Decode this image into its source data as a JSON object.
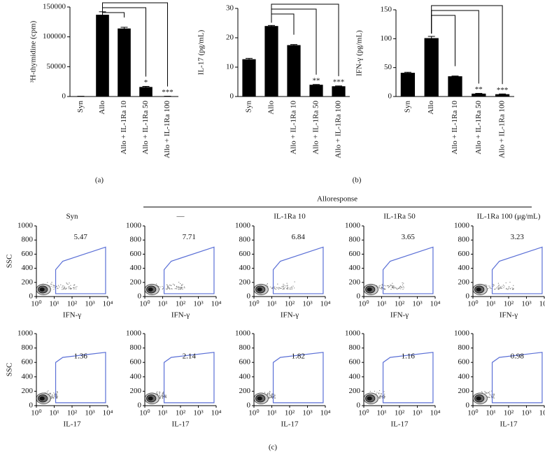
{
  "group_title": "Alloresponse",
  "panel_labels": [
    "(a)",
    "(b)",
    "(c)"
  ],
  "chart_data": [
    {
      "type": "bar",
      "ylabel": "³H-thymidine (cpm)",
      "categories": [
        "Syn",
        "Allo",
        "Allo + IL-1Ra 10",
        "Allo + IL-1Ra 50",
        "Allo + IL-1Ra 100"
      ],
      "values": [
        500,
        137000,
        114000,
        16000,
        500
      ],
      "errors": [
        0,
        5000,
        2000,
        1000,
        0
      ],
      "stars": [
        null,
        null,
        null,
        "*",
        "***"
      ],
      "color": "#000000",
      "ylim": [
        0,
        150000
      ],
      "yticks": [
        0,
        50000,
        100000,
        150000
      ]
    },
    {
      "type": "bar",
      "ylabel": "IL-17 (pg/mL)",
      "categories": [
        "Syn",
        "Allo",
        "Allo + IL-1Ra 10",
        "Allo + IL-1Ra 50",
        "Allo + IL-1Ra 100"
      ],
      "values": [
        12.7,
        24,
        17.5,
        4,
        3.5
      ],
      "errors": [
        0.3,
        0.2,
        0.2,
        0.1,
        0.1
      ],
      "stars": [
        null,
        null,
        null,
        "**",
        "***"
      ],
      "color": "#000000",
      "ylim": [
        0,
        30
      ],
      "yticks": [
        0,
        10,
        20,
        30
      ]
    },
    {
      "type": "bar",
      "ylabel": "IFN-γ (pg/mL)",
      "categories": [
        "Syn",
        "Allo",
        "Allo + IL-1Ra 10",
        "Allo + IL-1Ra 50",
        "Allo + IL-1Ra 100"
      ],
      "values": [
        41,
        101,
        35,
        5,
        4
      ],
      "errors": [
        1,
        3,
        0.5,
        0.5,
        0.5
      ],
      "stars": [
        null,
        null,
        null,
        "**",
        "***"
      ],
      "color": "#000000",
      "ylim": [
        0,
        150
      ],
      "yticks": [
        0,
        50,
        100,
        150
      ]
    },
    {
      "type": "flow",
      "title": "Syn",
      "ylabel": "SSC",
      "xlabel": "IFN-γ",
      "gate_value": 5.47,
      "color": "#5a6fd6",
      "xscale": "log",
      "xlim": [
        1,
        10000
      ],
      "ylim": [
        0,
        1000
      ],
      "xticks": [
        {
          "value": 1,
          "label": "10⁰"
        },
        {
          "value": 10,
          "label": "10¹"
        },
        {
          "value": 100,
          "label": "10²"
        },
        {
          "value": 1000,
          "label": "10³"
        },
        {
          "value": 10000,
          "label": "10⁴"
        }
      ],
      "yticks": [
        0,
        200,
        400,
        600,
        800,
        1000
      ]
    },
    {
      "type": "flow",
      "title": "—",
      "xlabel": "IFN-γ",
      "gate_value": 7.71,
      "color": "#5a6fd6",
      "xscale": "log",
      "xlim": [
        1,
        10000
      ],
      "ylim": [
        0,
        1000
      ],
      "xticks": [
        {
          "value": 1,
          "label": "10⁰"
        },
        {
          "value": 10,
          "label": "10¹"
        },
        {
          "value": 100,
          "label": "10²"
        },
        {
          "value": 1000,
          "label": "10³"
        },
        {
          "value": 10000,
          "label": "10⁴"
        }
      ],
      "yticks": [
        0,
        200,
        400,
        600,
        800,
        1000
      ]
    },
    {
      "type": "flow",
      "title": "IL-1Ra 10",
      "xlabel": "IFN-γ",
      "gate_value": 6.84,
      "color": "#5a6fd6",
      "xscale": "log",
      "xlim": [
        1,
        10000
      ],
      "ylim": [
        0,
        1000
      ],
      "xticks": [
        {
          "value": 1,
          "label": "10⁰"
        },
        {
          "value": 10,
          "label": "10¹"
        },
        {
          "value": 100,
          "label": "10²"
        },
        {
          "value": 1000,
          "label": "10³"
        },
        {
          "value": 10000,
          "label": "10⁴"
        }
      ],
      "yticks": [
        0,
        200,
        400,
        600,
        800,
        1000
      ]
    },
    {
      "type": "flow",
      "title": "IL-1Ra 50",
      "xlabel": "IFN-γ",
      "gate_value": 3.65,
      "color": "#5a6fd6",
      "xscale": "log",
      "xlim": [
        1,
        10000
      ],
      "ylim": [
        0,
        1000
      ],
      "xticks": [
        {
          "value": 1,
          "label": "10⁰"
        },
        {
          "value": 10,
          "label": "10¹"
        },
        {
          "value": 100,
          "label": "10²"
        },
        {
          "value": 1000,
          "label": "10³"
        },
        {
          "value": 10000,
          "label": "10⁴"
        }
      ],
      "yticks": [
        0,
        200,
        400,
        600,
        800,
        1000
      ]
    },
    {
      "type": "flow",
      "title": "IL-1Ra 100 (μg/mL)",
      "xlabel": "IFN-γ",
      "gate_value": 3.23,
      "color": "#5a6fd6",
      "xscale": "log",
      "xlim": [
        1,
        10000
      ],
      "ylim": [
        0,
        1000
      ],
      "xticks": [
        {
          "value": 1,
          "label": "10⁰"
        },
        {
          "value": 10,
          "label": "10¹"
        },
        {
          "value": 100,
          "label": "10²"
        },
        {
          "value": 1000,
          "label": "10³"
        },
        {
          "value": 10000,
          "label": "10⁴"
        }
      ],
      "yticks": [
        0,
        200,
        400,
        600,
        800,
        1000
      ]
    },
    {
      "type": "flow",
      "ylabel": "SSC",
      "xlabel": "IL-17",
      "gate_value": 1.36,
      "color": "#5a6fd6",
      "xscale": "log",
      "xlim": [
        1,
        10000
      ],
      "ylim": [
        0,
        1000
      ],
      "xticks": [
        {
          "value": 1,
          "label": "10⁰"
        },
        {
          "value": 10,
          "label": "10¹"
        },
        {
          "value": 100,
          "label": "10²"
        },
        {
          "value": 1000,
          "label": "10³"
        },
        {
          "value": 10000,
          "label": "10⁴"
        }
      ],
      "yticks": [
        0,
        200,
        400,
        600,
        800,
        1000
      ]
    },
    {
      "type": "flow",
      "xlabel": "IL-17",
      "gate_value": 2.14,
      "color": "#5a6fd6",
      "xscale": "log",
      "xlim": [
        1,
        10000
      ],
      "ylim": [
        0,
        1000
      ],
      "xticks": [
        {
          "value": 1,
          "label": "10⁰"
        },
        {
          "value": 10,
          "label": "10¹"
        },
        {
          "value": 100,
          "label": "10²"
        },
        {
          "value": 1000,
          "label": "10³"
        },
        {
          "value": 10000,
          "label": "10⁴"
        }
      ],
      "yticks": [
        0,
        200,
        400,
        600,
        800,
        1000
      ]
    },
    {
      "type": "flow",
      "xlabel": "IL-17",
      "gate_value": 1.82,
      "color": "#5a6fd6",
      "xscale": "log",
      "xlim": [
        1,
        10000
      ],
      "ylim": [
        0,
        1000
      ],
      "xticks": [
        {
          "value": 1,
          "label": "10⁰"
        },
        {
          "value": 10,
          "label": "10¹"
        },
        {
          "value": 100,
          "label": "10²"
        },
        {
          "value": 1000,
          "label": "10³"
        },
        {
          "value": 10000,
          "label": "10⁴"
        }
      ],
      "yticks": [
        0,
        200,
        400,
        600,
        800,
        1000
      ]
    },
    {
      "type": "flow",
      "xlabel": "IL-17",
      "gate_value": 1.16,
      "color": "#5a6fd6",
      "xscale": "log",
      "xlim": [
        1,
        10000
      ],
      "ylim": [
        0,
        1000
      ],
      "xticks": [
        {
          "value": 1,
          "label": "10⁰"
        },
        {
          "value": 10,
          "label": "10¹"
        },
        {
          "value": 100,
          "label": "10²"
        },
        {
          "value": 1000,
          "label": "10³"
        },
        {
          "value": 10000,
          "label": "10⁴"
        }
      ],
      "yticks": [
        0,
        200,
        400,
        600,
        800,
        1000
      ]
    },
    {
      "type": "flow",
      "xlabel": "IL-17",
      "gate_value": 0.98,
      "color": "#5a6fd6",
      "xscale": "log",
      "xlim": [
        1,
        10000
      ],
      "ylim": [
        0,
        1000
      ],
      "xticks": [
        {
          "value": 1,
          "label": "10⁰"
        },
        {
          "value": 10,
          "label": "10¹"
        },
        {
          "value": 100,
          "label": "10²"
        },
        {
          "value": 1000,
          "label": "10³"
        },
        {
          "value": 10000,
          "label": "10⁴"
        }
      ],
      "yticks": [
        0,
        200,
        400,
        600,
        800,
        1000
      ]
    }
  ]
}
